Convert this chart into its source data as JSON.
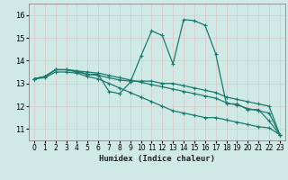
{
  "title": "",
  "xlabel": "Humidex (Indice chaleur)",
  "xlim": [
    -0.5,
    23.5
  ],
  "ylim": [
    10.5,
    16.5
  ],
  "yticks": [
    11,
    12,
    13,
    14,
    15,
    16
  ],
  "xticks": [
    0,
    1,
    2,
    3,
    4,
    5,
    6,
    7,
    8,
    9,
    10,
    11,
    12,
    13,
    14,
    15,
    16,
    17,
    18,
    19,
    20,
    21,
    22,
    23
  ],
  "bg_color": "#cfe9e5",
  "line_color": "#1a7a6e",
  "series": [
    {
      "x": [
        0,
        1,
        2,
        3,
        4,
        5,
        6,
        7,
        8,
        9,
        10,
        11,
        12,
        13,
        14,
        15,
        16,
        17,
        18,
        19,
        20,
        21,
        22,
        23
      ],
      "y": [
        13.2,
        13.3,
        13.6,
        13.6,
        13.5,
        13.4,
        13.4,
        12.65,
        12.55,
        13.05,
        14.2,
        15.3,
        15.1,
        13.85,
        15.8,
        15.75,
        15.55,
        14.3,
        12.1,
        12.1,
        11.85,
        11.85,
        11.35,
        10.75
      ]
    },
    {
      "x": [
        0,
        1,
        2,
        3,
        4,
        5,
        6,
        7,
        8,
        9,
        10,
        11,
        12,
        13,
        14,
        15,
        16,
        17,
        18,
        19,
        20,
        21,
        22,
        23
      ],
      "y": [
        13.2,
        13.3,
        13.6,
        13.6,
        13.55,
        13.4,
        13.35,
        13.25,
        13.15,
        13.1,
        13.1,
        13.1,
        13.0,
        13.0,
        12.9,
        12.8,
        12.7,
        12.6,
        12.4,
        12.3,
        12.2,
        12.1,
        12.0,
        10.75
      ]
    },
    {
      "x": [
        0,
        1,
        2,
        3,
        4,
        5,
        6,
        7,
        8,
        9,
        10,
        11,
        12,
        13,
        14,
        15,
        16,
        17,
        18,
        19,
        20,
        21,
        22,
        23
      ],
      "y": [
        13.2,
        13.3,
        13.6,
        13.6,
        13.55,
        13.5,
        13.45,
        13.35,
        13.25,
        13.15,
        13.05,
        12.95,
        12.85,
        12.75,
        12.65,
        12.55,
        12.45,
        12.35,
        12.15,
        12.05,
        11.9,
        11.8,
        11.7,
        10.75
      ]
    },
    {
      "x": [
        0,
        1,
        2,
        3,
        4,
        5,
        6,
        7,
        8,
        9,
        10,
        11,
        12,
        13,
        14,
        15,
        16,
        17,
        18,
        19,
        20,
        21,
        22,
        23
      ],
      "y": [
        13.2,
        13.25,
        13.5,
        13.5,
        13.45,
        13.3,
        13.2,
        13.0,
        12.8,
        12.6,
        12.4,
        12.2,
        12.0,
        11.8,
        11.7,
        11.6,
        11.5,
        11.5,
        11.4,
        11.3,
        11.2,
        11.1,
        11.05,
        10.75
      ]
    }
  ]
}
